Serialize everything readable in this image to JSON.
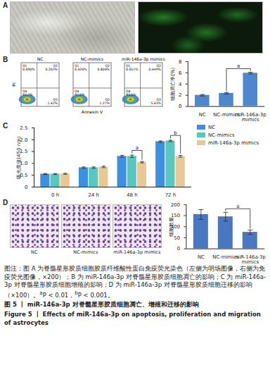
{
  "panels": [
    {
      "letter": "A"
    },
    {
      "letter": "B",
      "flow": {
        "x_label": "Annexin V",
        "y_label": "PI",
        "plots": [
          {
            "title": "NC",
            "quadrants": [
              {
                "name": "Q1",
                "label": "0.690%"
              },
              {
                "name": "Q2",
                "label": "0.202%"
              },
              {
                "name": "Q3",
                "label": "1.42%"
              },
              {
                "name": "Q4",
                "label": "97.7%"
              }
            ]
          },
          {
            "title": "NC-mimics",
            "quadrants": [
              {
                "name": "Q1",
                "label": "0.426%"
              },
              {
                "name": "Q2",
                "label": "0.804%"
              },
              {
                "name": "Q3",
                "label": "1.27%"
              },
              {
                "name": "Q4",
                "label": "97.5%"
              }
            ]
          },
          {
            "title": "miR-146a-3p mimics",
            "quadrants": [
              {
                "name": "Q1",
                "label": "0.651%"
              },
              {
                "name": "Q2",
                "label": "0.449%"
              },
              {
                "name": "Q3",
                "label": "5.43%"
              },
              {
                "name": "Q4",
                "label": "93.5%"
              }
            ]
          }
        ]
      }
    },
    {
      "letter": "C"
    },
    {
      "letter": "D",
      "images": [
        "NC",
        "NC-mimics",
        "miR-146a-3p mimics"
      ]
    }
  ],
  "chart_data": [
    {
      "type": "bar",
      "y_label": "细胞凋亡率(%)",
      "categories": [
        "NC",
        "NC-mimics",
        "miR-146a-3p mimics"
      ],
      "values": [
        2.0,
        2.35,
        5.95
      ],
      "errors": [
        0.12,
        0.15,
        0.15
      ],
      "color": "#4d88cc",
      "ylim": [
        0,
        8
      ],
      "yticks": [
        0,
        2,
        4,
        6,
        8
      ],
      "annotations": [
        {
          "from": "NC-mimics",
          "to": "miR-146a-3p mimics",
          "label": "a"
        }
      ]
    },
    {
      "type": "bar",
      "y_label": "吸光度值(450 nm)",
      "categories": [
        "0 h",
        "24 h",
        "48 h",
        "72 h"
      ],
      "series": [
        {
          "name": "NC",
          "color": "#3d8fdf",
          "values": [
            0.55,
            0.82,
            1.3,
            1.92
          ],
          "errors": [
            0.02,
            0.03,
            0.04,
            0.03
          ]
        },
        {
          "name": "NC-mimics",
          "color": "#57c7c0",
          "values": [
            0.55,
            0.82,
            1.3,
            1.95
          ],
          "errors": [
            0.02,
            0.03,
            0.05,
            0.03
          ]
        },
        {
          "name": "miR-146a-3p mimics",
          "color": "#e9c896",
          "values": [
            0.56,
            0.85,
            1.05,
            1.3
          ],
          "errors": [
            0.02,
            0.03,
            0.03,
            0.04
          ]
        }
      ],
      "ylim": [
        0,
        2.5
      ],
      "yticks": [
        0,
        0.5,
        {
          "value": 1,
          "label": "1.0"
        },
        1.5,
        {
          "value": 2,
          "label": "2.0"
        },
        2.5
      ],
      "legend": "right",
      "annotations": [
        {
          "category": "48 h",
          "from": "NC-mimics",
          "to": "miR-146a-3p mimics",
          "label": "a"
        },
        {
          "category": "72 h",
          "from": "NC-mimics",
          "to": "miR-146a-3p mimics",
          "label": "b"
        }
      ]
    },
    {
      "type": "bar",
      "y_label": "细胞数量",
      "categories": [
        "NC",
        "NC-mimics",
        "miR-146a-3p mimics"
      ],
      "values": [
        155,
        145,
        75
      ],
      "errors": [
        22,
        20,
        10
      ],
      "color": "#4a78c0",
      "ylim": [
        0,
        200
      ],
      "yticks": [
        0,
        50,
        100,
        150,
        200
      ],
      "annotations": [
        {
          "from": "NC-mimics",
          "to": "miR-146a-3p mimics",
          "label": "a"
        }
      ]
    }
  ],
  "caption": {
    "text": "图注：图 A 为脊髓星形胶质细胞胶质纤维酸性蛋白免疫荧光染色（左侧为明场图像，右侧为免疫荧光图像，×200）；B 为 miR-146a-3p 对脊髓星形胶质细胞凋亡的影响；C 为 miR-146a-3p 对脊髓星形胶质细胞增殖的影响；D 为 miR-146a-3p 对脊髓星形胶质细胞迁移的影响（×100）。",
    "notes": [
      {
        "mark": "a",
        "text": "P < 0.01，"
      },
      {
        "mark": "b",
        "text": "P < 0.001。"
      }
    ],
    "title_zh": "图 5 丨 miR-146a-3p 对脊髓星形胶质细胞凋亡、增殖和迁移的影响",
    "title_en": "Figure 5 丨 Effects of miR-146a-3p on apoptosis, proliferation and migration of astrocytes"
  }
}
